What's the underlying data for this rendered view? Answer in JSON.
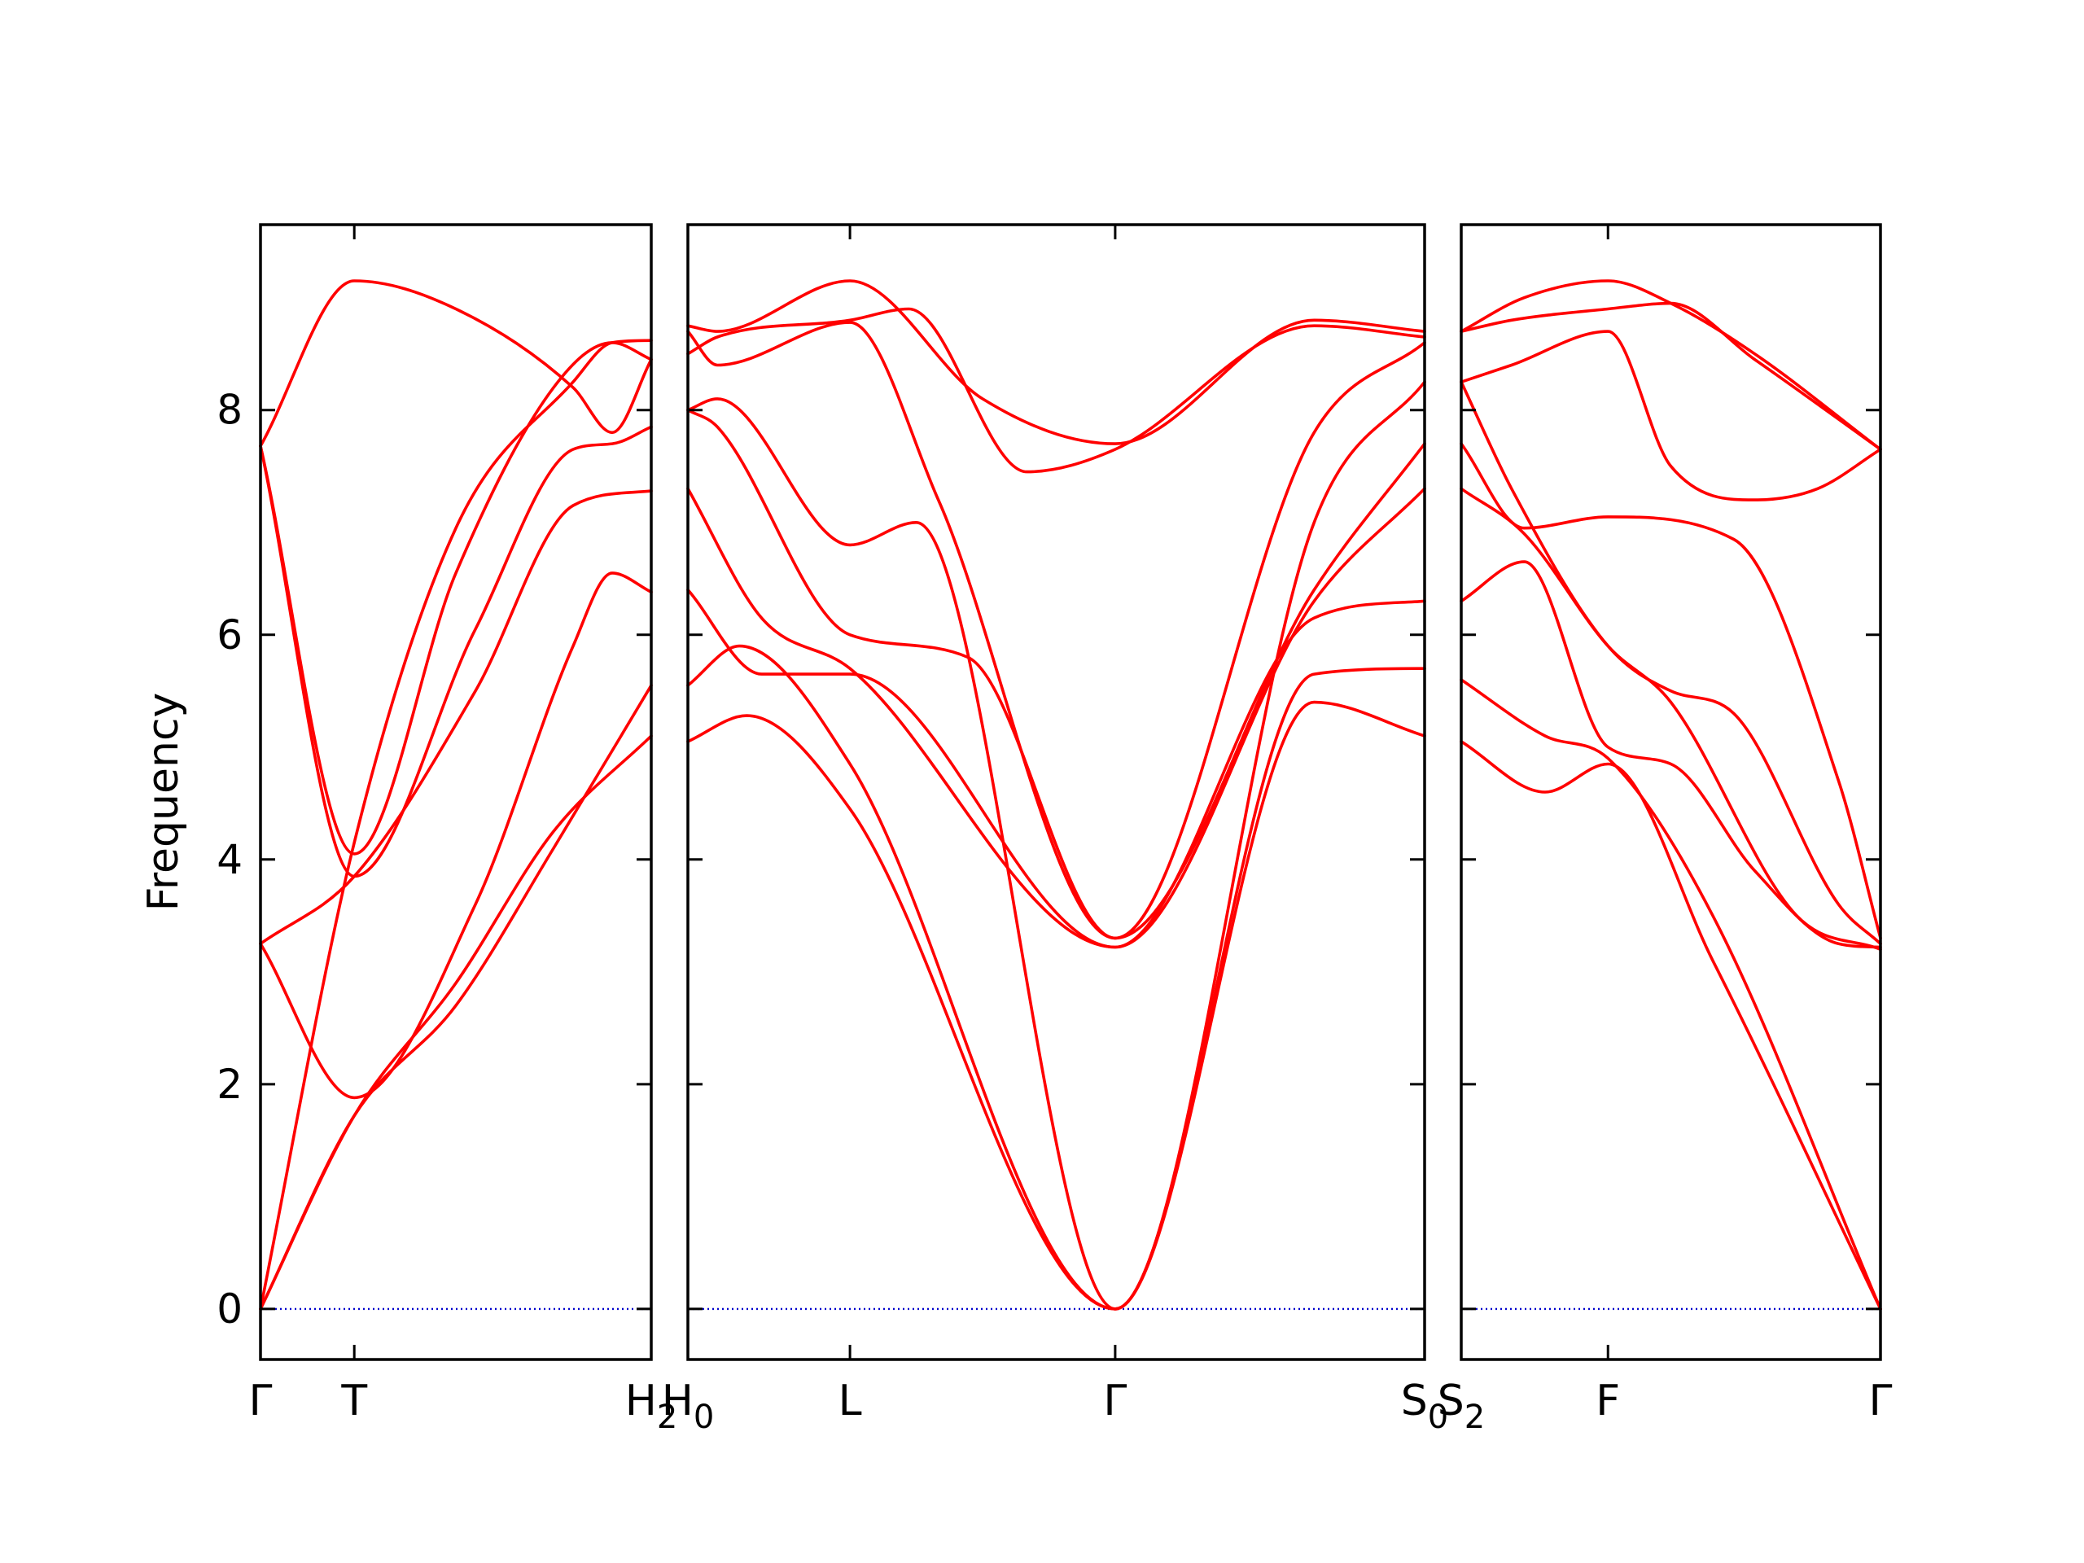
{
  "chart_data": {
    "type": "line",
    "ylabel": "Frequency",
    "ylim": [
      -0.45,
      9.65
    ],
    "yticks": [
      0,
      2,
      4,
      6,
      8
    ],
    "grid": false,
    "colors": {
      "bands": "#ff0000",
      "zero_line": "#0000cc",
      "axes": "#000000"
    },
    "panels": [
      {
        "x_range": [
          0,
          1
        ],
        "ticks": [
          {
            "x": 0,
            "label": "Γ"
          },
          {
            "x": 0.24,
            "label": "T"
          },
          {
            "x": 1,
            "label": "H",
            "sub": "2"
          }
        ],
        "bands": [
          {
            "x": [
              0,
              0.24,
              0.5,
              0.75,
              1
            ],
            "y": [
              0,
              1.72,
              2.9,
              4.25,
              5.1
            ]
          },
          {
            "x": [
              0,
              0.24,
              0.5,
              0.75,
              1
            ],
            "y": [
              0,
              1.72,
              2.7,
              4.1,
              5.55
            ]
          },
          {
            "x": [
              0,
              0.24,
              0.55,
              0.8,
              0.9,
              1
            ],
            "y": [
              3.25,
              1.88,
              3.6,
              5.9,
              6.55,
              6.38
            ]
          },
          {
            "x": [
              0,
              0.24,
              0.55,
              0.8,
              1
            ],
            "y": [
              3.25,
              3.85,
              5.5,
              7.15,
              7.28
            ]
          },
          {
            "x": [
              0,
              0.24,
              0.55,
              0.8,
              0.9,
              1
            ],
            "y": [
              7.68,
              3.85,
              6.05,
              7.65,
              7.7,
              7.85
            ]
          },
          {
            "x": [
              0,
              0.24,
              0.5,
              0.75,
              0.9,
              1
            ],
            "y": [
              7.68,
              4.05,
              6.55,
              8.2,
              8.6,
              8.45
            ]
          },
          {
            "x": [
              0,
              0.24,
              0.5,
              0.8,
              0.9,
              1
            ],
            "y": [
              0,
              4.15,
              6.95,
              8.25,
              8.6,
              8.62
            ]
          },
          {
            "x": [
              0,
              0.24,
              0.5,
              0.8,
              0.9,
              1
            ],
            "y": [
              7.68,
              9.15,
              8.9,
              8.2,
              7.8,
              8.45
            ]
          }
        ]
      },
      {
        "x_range": [
          0,
          1
        ],
        "ticks": [
          {
            "x": 0,
            "label": "H",
            "sub": "0"
          },
          {
            "x": 0.22,
            "label": "L"
          },
          {
            "x": 0.58,
            "label": "Γ"
          },
          {
            "x": 1,
            "label": "S",
            "sub": "0"
          }
        ],
        "bands": [
          {
            "x": [
              0,
              0.08,
              0.22,
              0.58,
              0.85,
              1
            ],
            "y": [
              5.05,
              5.28,
              4.45,
              0,
              5.4,
              5.1
            ]
          },
          {
            "x": [
              0,
              0.07,
              0.22,
              0.58,
              0.85,
              1
            ],
            "y": [
              5.55,
              5.9,
              4.85,
              0,
              5.65,
              5.7
            ]
          },
          {
            "x": [
              0,
              0.1,
              0.22,
              0.58,
              0.85,
              1
            ],
            "y": [
              6.4,
              5.65,
              5.65,
              3.22,
              6.15,
              6.3
            ]
          },
          {
            "x": [
              0,
              0.1,
              0.22,
              0.58,
              0.85,
              1
            ],
            "y": [
              7.3,
              6.15,
              5.7,
              3.22,
              6.3,
              7.3
            ]
          },
          {
            "x": [
              0,
              0.04,
              0.22,
              0.38,
              0.58,
              0.85,
              1
            ],
            "y": [
              8.0,
              7.85,
              6.0,
              5.8,
              3.3,
              6.4,
              7.7
            ]
          },
          {
            "x": [
              0,
              0.04,
              0.22,
              0.31,
              0.58,
              0.85,
              1
            ],
            "y": [
              8.0,
              8.1,
              6.8,
              7.0,
              0,
              7.0,
              8.25
            ]
          },
          {
            "x": [
              0,
              0.04,
              0.22,
              0.34,
              0.58,
              0.85,
              1
            ],
            "y": [
              8.7,
              8.4,
              8.78,
              7.2,
              3.3,
              7.8,
              8.6
            ]
          },
          {
            "x": [
              0,
              0.04,
              0.22,
              0.3,
              0.46,
              0.58,
              0.85,
              1
            ],
            "y": [
              8.5,
              8.65,
              8.8,
              8.9,
              7.45,
              7.65,
              8.75,
              8.65
            ]
          },
          {
            "x": [
              0,
              0.04,
              0.22,
              0.4,
              0.58,
              0.85,
              1
            ],
            "y": [
              8.75,
              8.7,
              9.15,
              8.1,
              7.7,
              8.8,
              8.7
            ]
          }
        ]
      },
      {
        "x_range": [
          0,
          1
        ],
        "ticks": [
          {
            "x": 0,
            "label": "S",
            "sub": "2"
          },
          {
            "x": 0.35,
            "label": "F"
          },
          {
            "x": 1,
            "label": "Γ"
          }
        ],
        "bands": [
          {
            "x": [
              0,
              0.2,
              0.35,
              0.6,
              1
            ],
            "y": [
              5.05,
              4.6,
              4.85,
              3.1,
              0
            ]
          },
          {
            "x": [
              0,
              0.2,
              0.35,
              0.6,
              1
            ],
            "y": [
              5.6,
              5.1,
              4.9,
              3.5,
              0
            ]
          },
          {
            "x": [
              0,
              0.15,
              0.35,
              0.5,
              0.7,
              0.9,
              1
            ],
            "y": [
              6.3,
              6.65,
              5.0,
              4.85,
              3.9,
              3.25,
              3.22
            ]
          },
          {
            "x": [
              0,
              0.15,
              0.35,
              0.5,
              0.8,
              1
            ],
            "y": [
              7.3,
              6.9,
              5.9,
              5.4,
              3.5,
              3.2
            ]
          },
          {
            "x": [
              0,
              0.15,
              0.35,
              0.65,
              0.9,
              1
            ],
            "y": [
              7.7,
              6.95,
              7.05,
              6.85,
              4.7,
              3.3
            ]
          },
          {
            "x": [
              0,
              0.12,
              0.35,
              0.5,
              0.65,
              0.9,
              1
            ],
            "y": [
              8.25,
              7.3,
              5.9,
              5.5,
              5.3,
              3.6,
              3.25
            ]
          },
          {
            "x": [
              0,
              0.12,
              0.35,
              0.5,
              0.7,
              0.85,
              1
            ],
            "y": [
              8.25,
              8.4,
              8.7,
              7.5,
              7.2,
              7.3,
              7.65
            ]
          },
          {
            "x": [
              0,
              0.12,
              0.35,
              0.5,
              0.7,
              1
            ],
            "y": [
              8.7,
              8.8,
              8.9,
              8.95,
              8.45,
              7.65
            ]
          },
          {
            "x": [
              0,
              0.15,
              0.35,
              0.5,
              0.7,
              1
            ],
            "y": [
              8.7,
              9.0,
              9.15,
              8.95,
              8.5,
              7.65
            ]
          }
        ]
      }
    ]
  }
}
